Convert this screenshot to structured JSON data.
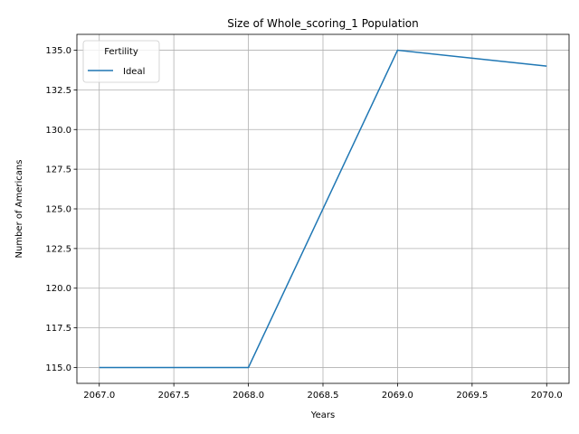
{
  "chart_data": {
    "type": "line",
    "title": "Size of Whole_scoring_1 Population",
    "xlabel": "Years",
    "ylabel": "Number of Americans",
    "x": [
      2067,
      2068,
      2069,
      2070
    ],
    "series": [
      {
        "name": "Ideal",
        "values": [
          115,
          115,
          135,
          134
        ],
        "color": "#1f77b4"
      }
    ],
    "xlim": [
      2066.85,
      2070.15
    ],
    "ylim": [
      114.0,
      136.0
    ],
    "xticks": [
      2067.0,
      2067.5,
      2068.0,
      2068.5,
      2069.0,
      2069.5,
      2070.0
    ],
    "xtick_labels": [
      "2067.0",
      "2067.5",
      "2068.0",
      "2068.5",
      "2069.0",
      "2069.5",
      "2070.0"
    ],
    "yticks": [
      115.0,
      117.5,
      120.0,
      122.5,
      125.0,
      127.5,
      130.0,
      132.5,
      135.0
    ],
    "ytick_labels": [
      "115.0",
      "117.5",
      "120.0",
      "122.5",
      "125.0",
      "127.5",
      "130.0",
      "132.5",
      "135.0"
    ],
    "grid": true,
    "legend": {
      "title": "Fertility",
      "placement": "top-left"
    }
  }
}
